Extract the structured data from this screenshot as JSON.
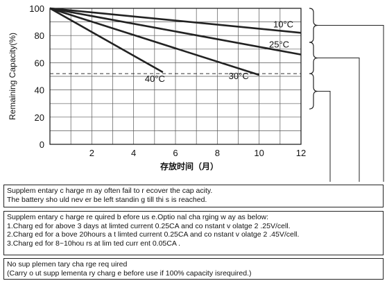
{
  "chart_data": {
    "type": "line",
    "xlabel": "存放时间（月）",
    "ylabel": "Remaining Capacity(%)",
    "xlim": [
      0,
      12
    ],
    "ylim": [
      0,
      100
    ],
    "xticks": [
      2,
      4,
      6,
      8,
      10,
      12
    ],
    "yticks": [
      0,
      20,
      40,
      60,
      80,
      100
    ],
    "grid": true,
    "series": [
      {
        "name": "10°C",
        "x": [
          0,
          12
        ],
        "y": [
          100,
          82
        ]
      },
      {
        "name": "25°C",
        "x": [
          0,
          12
        ],
        "y": [
          100,
          66
        ]
      },
      {
        "name": "30°C",
        "x": [
          0,
          10
        ],
        "y": [
          100,
          51
        ]
      },
      {
        "name": "40°C",
        "x": [
          0,
          5.4
        ],
        "y": [
          100,
          53
        ]
      }
    ],
    "reference_line": {
      "y": 52,
      "style": "dashed"
    }
  },
  "notes": [
    {
      "lines": [
        "Supplem entary c harge m ay often  fail to r ecover  the cap acity.",
        "The battery sho uld nev er be  left  standin g till thi s is reached."
      ]
    },
    {
      "lines": [
        "Supplem entary c harge re quired b efore us e.Optio nal cha rging w ay as below:",
        "1.Charg ed for above 3 days at  limted  current  0.25CA and co nstant  v olatge 2 .25V/cell.",
        "2.Charg ed for a bove 20hours a t  limted  current  0.25CA and co nstant v olatge 2 .45V/cell.",
        "3.Charg ed for 8~10hou rs at lim ted curr ent 0.05CA ."
      ]
    },
    {
      "lines": [
        "No sup plemen tary cha rge req uired",
        "(Carry o ut supp lementa ry charg e before  use if 100% capacity isrequired.)"
      ]
    }
  ]
}
